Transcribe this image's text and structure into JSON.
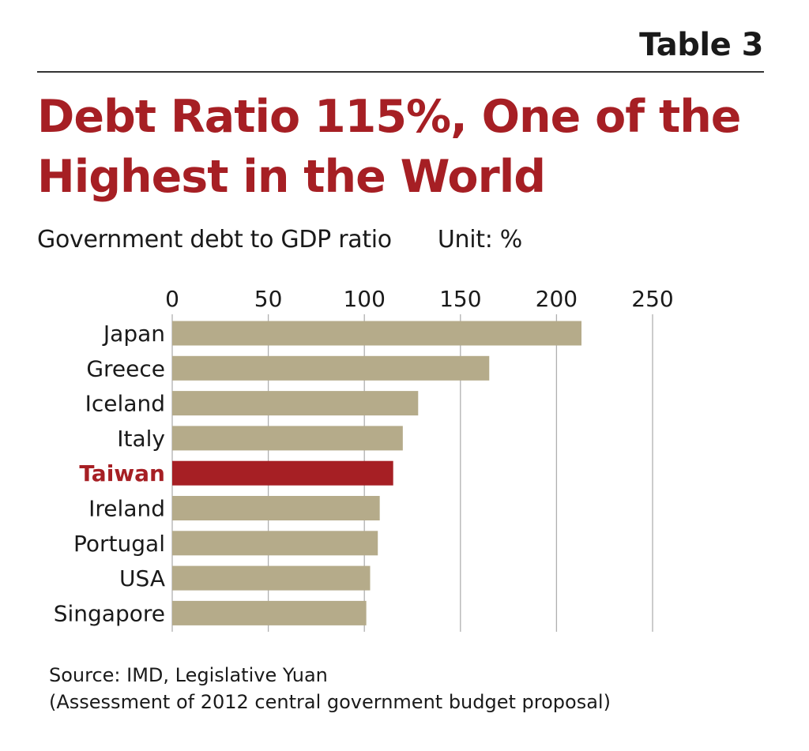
{
  "header": {
    "table_label": "Table 3",
    "title_line1": "Debt Ratio 115%, One of the",
    "title_line2": "Highest in the World",
    "subtitle": "Government debt to GDP ratio",
    "unit": "Unit: %"
  },
  "colors": {
    "accent": "#a61f24",
    "bar": "#b5ab8a",
    "highlight_bar": "#a61f24",
    "grid": "#b0b0b0",
    "text": "#1a1a1a"
  },
  "chart_data": {
    "type": "bar",
    "orientation": "horizontal",
    "categories": [
      "Japan",
      "Greece",
      "Iceland",
      "Italy",
      "Taiwan",
      "Ireland",
      "Portugal",
      "USA",
      "Singapore"
    ],
    "values": [
      213,
      165,
      128,
      120,
      115,
      108,
      107,
      103,
      101
    ],
    "highlight": "Taiwan",
    "xlim": [
      0,
      250
    ],
    "xticks": [
      "0",
      "50",
      "100",
      "150",
      "200",
      "250"
    ],
    "grid": true,
    "axis_position": "top"
  },
  "source": {
    "line1": "Source: IMD, Legislative Yuan",
    "line2": "(Assessment of 2012 central government budget proposal)"
  }
}
